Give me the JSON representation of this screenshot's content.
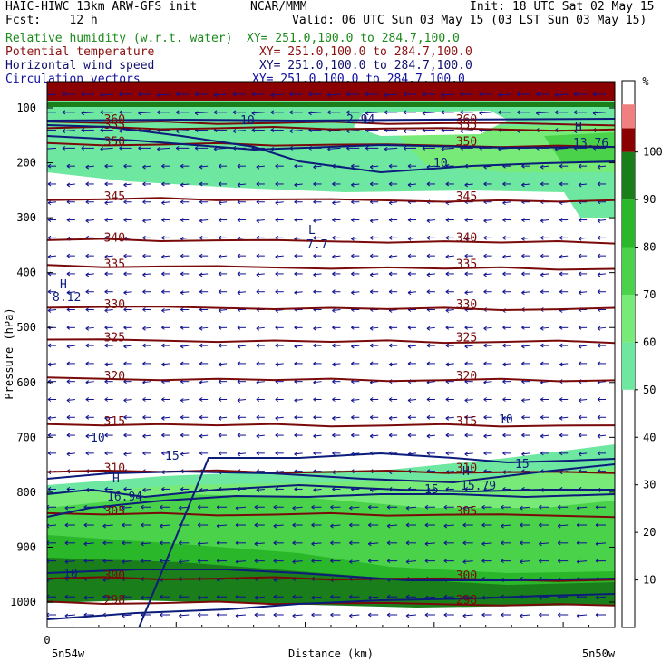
{
  "header": {
    "line1_left": "HAIC-HIWC 13km ARW-GFS init",
    "line1_mid": "NCAR/MMM",
    "line1_right": "Init: 18 UTC Sat 02 May 15",
    "line2_left": "Fcst:    12 h",
    "line2_right": "Valid: 06 UTC Sun 03 May 15 (03 LST Sun 03 May 15)",
    "fields": [
      {
        "name": "Relative humidity (w.r.t. water)",
        "xy": "XY= 251.0,100.0 to 284.7,100.0",
        "color": "#1a8a1a"
      },
      {
        "name": "Potential temperature",
        "xy": "XY= 251.0,100.0 to 284.7,100.0",
        "color": "#8b1010"
      },
      {
        "name": "Horizontal wind speed",
        "xy": "XY= 251.0,100.0 to 284.7,100.0",
        "color": "#101070"
      },
      {
        "name": "Circulation vectors",
        "xy": "XY= 251.0,100.0 to 284.7,100.0",
        "color": "#1010a0"
      }
    ]
  },
  "chart_data": {
    "type": "heatmap",
    "ylabel": "Pressure (hPa)",
    "xlabel": "Distance (km)",
    "x_ticks": [
      "0"
    ],
    "x_endpoints": [
      "5n54w",
      "5n50w"
    ],
    "y_ticks": [
      100,
      200,
      300,
      400,
      500,
      600,
      700,
      800,
      900,
      1000
    ],
    "ylim": [
      1050,
      60
    ],
    "colorbar": {
      "unit": "%",
      "ticks": [
        10,
        20,
        30,
        40,
        50,
        60,
        70,
        80,
        90,
        100
      ],
      "bands": [
        {
          "from": 50,
          "to": 60,
          "color": "#6ee8a0"
        },
        {
          "from": 60,
          "to": 70,
          "color": "#78ea78"
        },
        {
          "from": 70,
          "to": 80,
          "color": "#4ad24a"
        },
        {
          "from": 80,
          "to": 90,
          "color": "#2ab82a"
        },
        {
          "from": 90,
          "to": 100,
          "color": "#1a7e1a"
        },
        {
          "from": 100,
          "to": 105,
          "color": "#8b0000"
        },
        {
          "from": 105,
          "to": 110,
          "color": "#f08080"
        }
      ]
    },
    "theta_contours": [
      {
        "level": 360,
        "p": 125
      },
      {
        "level": 355,
        "p": 135
      },
      {
        "level": 350,
        "p": 165
      },
      {
        "level": 345,
        "p": 265
      },
      {
        "level": 340,
        "p": 340
      },
      {
        "level": 335,
        "p": 388
      },
      {
        "level": 330,
        "p": 462
      },
      {
        "level": 325,
        "p": 522
      },
      {
        "level": 320,
        "p": 592
      },
      {
        "level": 315,
        "p": 675
      },
      {
        "level": 310,
        "p": 760
      },
      {
        "level": 305,
        "p": 838
      },
      {
        "level": 300,
        "p": 955
      },
      {
        "level": 298,
        "p": 1000
      }
    ],
    "wind_labels": [
      "10",
      "10",
      "10",
      "15",
      "15",
      "15",
      "10",
      "10"
    ],
    "extrema": [
      {
        "kind": "H",
        "value": "8.12"
      },
      {
        "kind": "L",
        "value": "7.7"
      },
      {
        "kind": "H",
        "value": "16.94"
      },
      {
        "kind": "H",
        "value": "15.79"
      },
      {
        "kind": "L",
        "value": "2.94"
      },
      {
        "kind": "H",
        "value": "13.76"
      }
    ]
  }
}
